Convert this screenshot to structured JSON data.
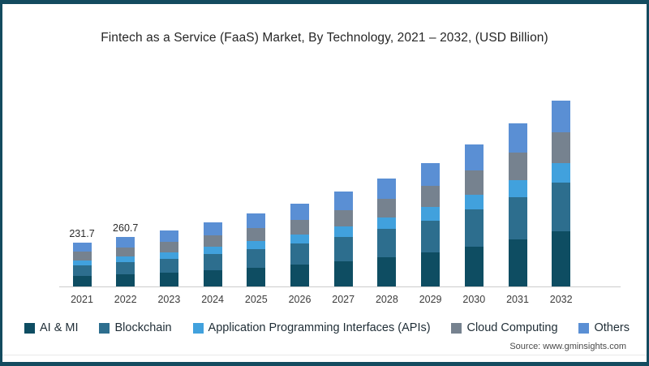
{
  "page": {
    "source_note": "Source: www.gminsights.com"
  },
  "chart_data": {
    "type": "bar",
    "stacked": true,
    "title": "Fintech as a Service (FaaS) Market, By Technology, 2021 – 2032, (USD Billion)",
    "unit": "USD Billion",
    "grid": false,
    "legend_position": "bottom",
    "categories": [
      "2021",
      "2022",
      "2023",
      "2024",
      "2025",
      "2026",
      "2027",
      "2028",
      "2029",
      "2030",
      "2031",
      "2032"
    ],
    "series": [
      {
        "name": "AI & MI",
        "color": "#0e4d62",
        "values": [
          55.7,
          63.4,
          73.5,
          86.0,
          99.0,
          115.0,
          133.0,
          155.0,
          180.0,
          212.0,
          248.0,
          290.0
        ]
      },
      {
        "name": "Blockchain",
        "color": "#2d6e8e",
        "values": [
          57.9,
          65.5,
          74.5,
          86.0,
          98.0,
          112.0,
          129.0,
          148.0,
          170.0,
          196.0,
          226.0,
          262.0
        ]
      },
      {
        "name": "Application Programming Interfaces (APIs)",
        "color": "#41a1dd",
        "values": [
          25.9,
          28.9,
          32.5,
          37.0,
          42.0,
          47.5,
          54.0,
          61.0,
          69.0,
          79.0,
          90.0,
          102.0
        ]
      },
      {
        "name": "Cloud Computing",
        "color": "#76828f",
        "values": [
          43.3,
          48.3,
          54.0,
          61.5,
          69.0,
          78.0,
          88.5,
          100.0,
          113.5,
          129.0,
          146.0,
          162.0
        ]
      },
      {
        "name": "Others",
        "color": "#5a8fd4",
        "values": [
          48.9,
          54.6,
          61.0,
          69.0,
          77.0,
          86.0,
          96.5,
          108.0,
          120.5,
          136.0,
          152.0,
          168.0
        ]
      }
    ],
    "bar_total_labels": {
      "2021": "231.7",
      "2022": "260.7"
    },
    "axis": {
      "baseline_color": "#cccccc",
      "y_axis_hidden": true
    }
  },
  "frame": {
    "border_color": "#134b5f"
  }
}
